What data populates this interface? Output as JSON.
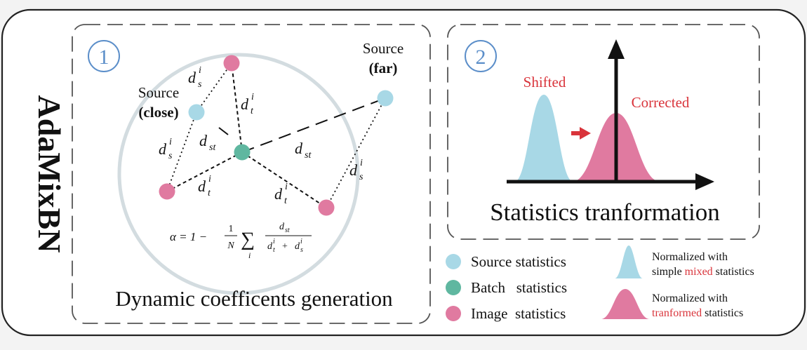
{
  "title": "AdaMixBN",
  "panel1": {
    "number": "1",
    "caption": "Dynamic coefficents generation",
    "source_close": {
      "line1": "Source",
      "line2": "(close)"
    },
    "source_far": {
      "line1": "Source",
      "line2": "(far)"
    },
    "labels": {
      "d": "d",
      "sub_s": "s",
      "sub_t": "t",
      "sub_st": "st",
      "sup_i": "i"
    },
    "formula": {
      "lhs": "α = 1 −",
      "frac1_num": "1",
      "frac1_den": "N",
      "sum": "∑",
      "sum_index": "i",
      "num_d": "d",
      "num_sub": "st",
      "den_plus": "+"
    }
  },
  "panel2": {
    "number": "2",
    "caption": "Statistics tranformation",
    "shifted": "Shifted",
    "corrected": "Corrected"
  },
  "legend": {
    "source": "Source statistics",
    "batch": "Batch   statistics",
    "image": "Image  statistics",
    "mixed_line1": "Normalized with",
    "mixed_line2_pre": "simple ",
    "mixed_line2_hl": "mixed",
    "mixed_line2_post": " statistics",
    "trans_line1": "Normalized with",
    "trans_line2_hl": "tranformed",
    "trans_line2_post": " statistics"
  },
  "colors": {
    "source": "#a8d8e6",
    "batch": "#5fb7a0",
    "image": "#e07aa0",
    "accent_red": "#d9343b",
    "badge_blue": "#5b8ec9",
    "ring": "#d3dce0"
  }
}
